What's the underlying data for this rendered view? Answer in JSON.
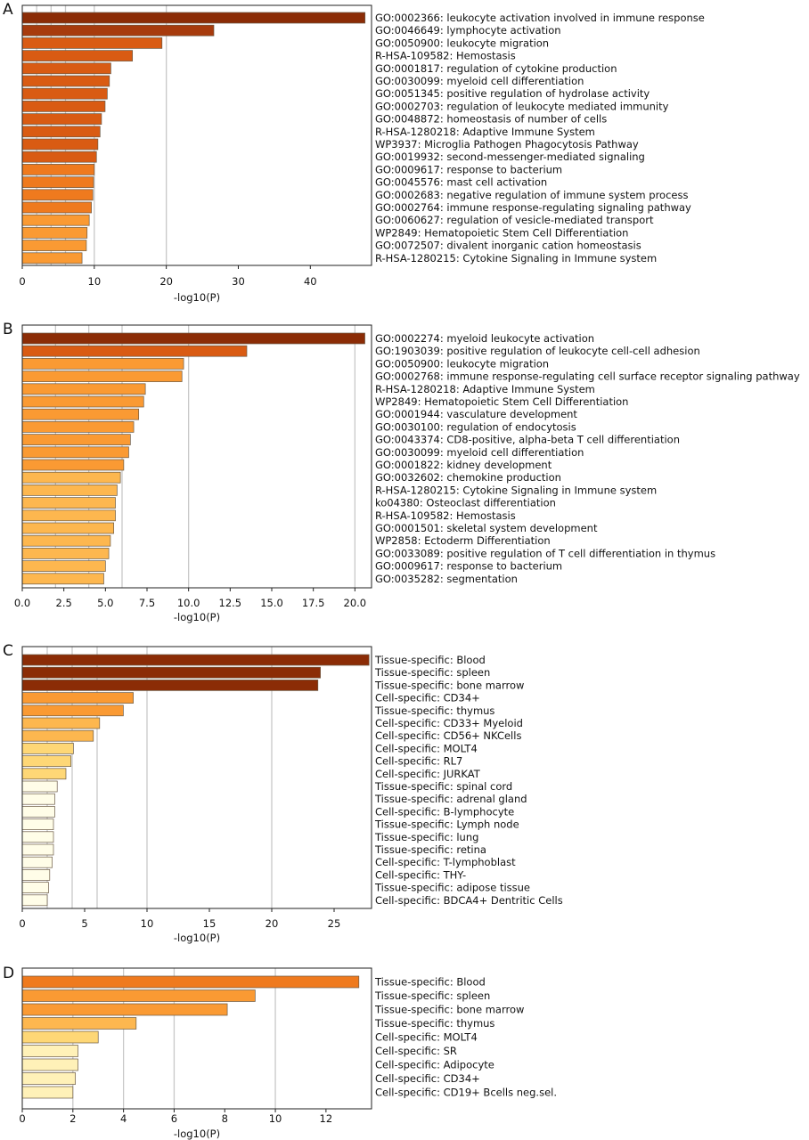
{
  "figure": {
    "panels": [
      "A",
      "B",
      "C",
      "D"
    ]
  },
  "colors": {
    "scale": [
      "#fffde8",
      "#fff1b8",
      "#fed776",
      "#fdb74f",
      "#fa9a33",
      "#ef7a1e",
      "#d95b13",
      "#a73b0d",
      "#8b2c06"
    ],
    "grid": "#c8c8c8",
    "axis": "#222222"
  },
  "chart_data": [
    {
      "panel": "A",
      "type": "bar",
      "orientation": "horizontal",
      "xlabel": "-log10(P)",
      "xlim": [
        0,
        48.5
      ],
      "xticks": [
        0,
        10,
        20,
        30,
        40
      ],
      "xtick_labels": [
        "0",
        "10",
        "20",
        "30",
        "40"
      ],
      "gridlines": [
        2,
        4,
        6,
        10,
        20
      ],
      "categories": [
        "GO:0002366: leukocyte activation involved in immune response",
        "GO:0046649: lymphocyte activation",
        "GO:0050900: leukocyte migration",
        "R-HSA-109582: Hemostasis",
        "GO:0001817: regulation of cytokine production",
        "GO:0030099: myeloid cell differentiation",
        "GO:0051345: positive regulation of hydrolase activity",
        "GO:0002703: regulation of leukocyte mediated immunity",
        "GO:0048872: homeostasis of number of cells",
        "R-HSA-1280218: Adaptive Immune System",
        "WP3937: Microglia Pathogen Phagocytosis Pathway",
        "GO:0019932: second-messenger-mediated signaling",
        "GO:0009617: response to bacterium",
        "GO:0045576: mast cell activation",
        "GO:0002683: negative regulation of immune system process",
        "GO:0002764: immune response-regulating signaling pathway",
        "GO:0060627: regulation of vesicle-mediated transport",
        "WP2849: Hematopoietic Stem Cell Differentiation",
        "GO:0072507: divalent inorganic cation homeostasis",
        "R-HSA-1280215: Cytokine Signaling in Immune system"
      ],
      "values": [
        47.6,
        26.6,
        19.4,
        15.3,
        12.3,
        12.1,
        11.8,
        11.5,
        11.0,
        10.8,
        10.5,
        10.3,
        10.0,
        9.9,
        9.8,
        9.6,
        9.3,
        9.0,
        8.9,
        8.3
      ],
      "color_index": [
        8,
        7,
        6,
        6,
        6,
        6,
        6,
        6,
        6,
        6,
        6,
        6,
        5,
        5,
        5,
        5,
        4,
        4,
        4,
        4
      ]
    },
    {
      "panel": "B",
      "type": "bar",
      "orientation": "horizontal",
      "xlabel": "-log10(P)",
      "xlim": [
        0,
        21.0
      ],
      "xticks": [
        0,
        2.5,
        5.0,
        7.5,
        10.0,
        12.5,
        15.0,
        17.5,
        20.0
      ],
      "xtick_labels": [
        "0.0",
        "2.5",
        "5.0",
        "7.5",
        "10.0",
        "12.5",
        "15.0",
        "17.5",
        "20.0"
      ],
      "gridlines": [
        2,
        4,
        6,
        10,
        20
      ],
      "categories": [
        "GO:0002274: myeloid leukocyte activation",
        "GO:1903039: positive regulation of leukocyte cell-cell adhesion",
        "GO:0050900: leukocyte migration",
        "GO:0002768: immune response-regulating cell surface receptor signaling pathway",
        "R-HSA-1280218: Adaptive Immune System",
        "WP2849: Hematopoietic Stem Cell Differentiation",
        "GO:0001944: vasculature development",
        "GO:0030100: regulation of endocytosis",
        "GO:0043374: CD8-positive, alpha-beta T cell differentiation",
        "GO:0030099: myeloid cell differentiation",
        "GO:0001822: kidney development",
        "GO:0032602: chemokine production",
        "R-HSA-1280215: Cytokine Signaling in Immune system",
        "ko04380: Osteoclast differentiation",
        "R-HSA-109582: Hemostasis",
        "GO:0001501: skeletal system development",
        "WP2858: Ectoderm Differentiation",
        "GO:0033089: positive regulation of T cell differentiation in thymus",
        "GO:0009617: response to bacterium",
        "GO:0035282: segmentation"
      ],
      "values": [
        20.6,
        13.5,
        9.7,
        9.6,
        7.4,
        7.3,
        7.0,
        6.7,
        6.5,
        6.4,
        6.1,
        5.9,
        5.7,
        5.6,
        5.6,
        5.5,
        5.3,
        5.2,
        5.0,
        4.9
      ],
      "color_index": [
        8,
        6,
        4,
        4,
        4,
        4,
        4,
        4,
        4,
        4,
        4,
        3,
        3,
        3,
        3,
        3,
        3,
        3,
        3,
        3
      ]
    },
    {
      "panel": "C",
      "type": "bar",
      "orientation": "horizontal",
      "xlabel": "-log10(P)",
      "xlim": [
        0,
        28.0
      ],
      "xticks": [
        0,
        5,
        10,
        15,
        20,
        25
      ],
      "xtick_labels": [
        "0",
        "5",
        "10",
        "15",
        "20",
        "25"
      ],
      "gridlines": [
        2,
        4,
        6,
        10,
        20
      ],
      "categories": [
        "Tissue-specific: Blood",
        "Tissue-specific: spleen",
        "Tissue-specific: bone marrow",
        "Cell-specific: CD34+",
        "Tissue-specific: thymus",
        "Cell-specific: CD33+ Myeloid",
        "Cell-specific: CD56+ NKCells",
        "Cell-specific: MOLT4",
        "Cell-specific: RL7",
        "Cell-specific: JURKAT",
        "Tissue-specific: spinal cord",
        "Tissue-specific: adrenal gland",
        "Cell-specific: B-lymphocyte",
        "Tissue-specific: Lymph node",
        "Tissue-specific: lung",
        "Tissue-specific: retina",
        "Cell-specific: T-lymphoblast",
        "Cell-specific: THY-",
        "Tissue-specific: adipose tissue",
        "Cell-specific: BDCA4+ Dentritic Cells"
      ],
      "values": [
        27.8,
        23.9,
        23.7,
        8.9,
        8.1,
        6.2,
        5.7,
        4.1,
        3.9,
        3.5,
        2.8,
        2.6,
        2.6,
        2.5,
        2.5,
        2.5,
        2.4,
        2.2,
        2.1,
        2.0
      ],
      "color_index": [
        8,
        8,
        8,
        4,
        4,
        3,
        3,
        2,
        2,
        2,
        0,
        0,
        0,
        0,
        0,
        0,
        0,
        0,
        0,
        0
      ]
    },
    {
      "panel": "D",
      "type": "bar",
      "orientation": "horizontal",
      "xlabel": "-log10(P)",
      "xlim": [
        0,
        13.8
      ],
      "xticks": [
        0,
        2,
        4,
        6,
        8,
        10,
        12
      ],
      "xtick_labels": [
        "0",
        "2",
        "4",
        "6",
        "8",
        "10",
        "12"
      ],
      "gridlines": [
        2,
        4,
        6,
        10
      ],
      "categories": [
        "Tissue-specific: Blood",
        "Tissue-specific: spleen",
        "Tissue-specific: bone marrow",
        "Tissue-specific: thymus",
        "Cell-specific: MOLT4",
        "Cell-specific: SR",
        "Cell-specific: Adipocyte",
        "Cell-specific: CD34+",
        "Cell-specific: CD19+ Bcells neg.sel."
      ],
      "values": [
        13.3,
        9.2,
        8.1,
        4.5,
        3.0,
        2.2,
        2.2,
        2.1,
        2.0
      ],
      "color_index": [
        5,
        4,
        4,
        3,
        2,
        1,
        1,
        1,
        1
      ]
    }
  ]
}
